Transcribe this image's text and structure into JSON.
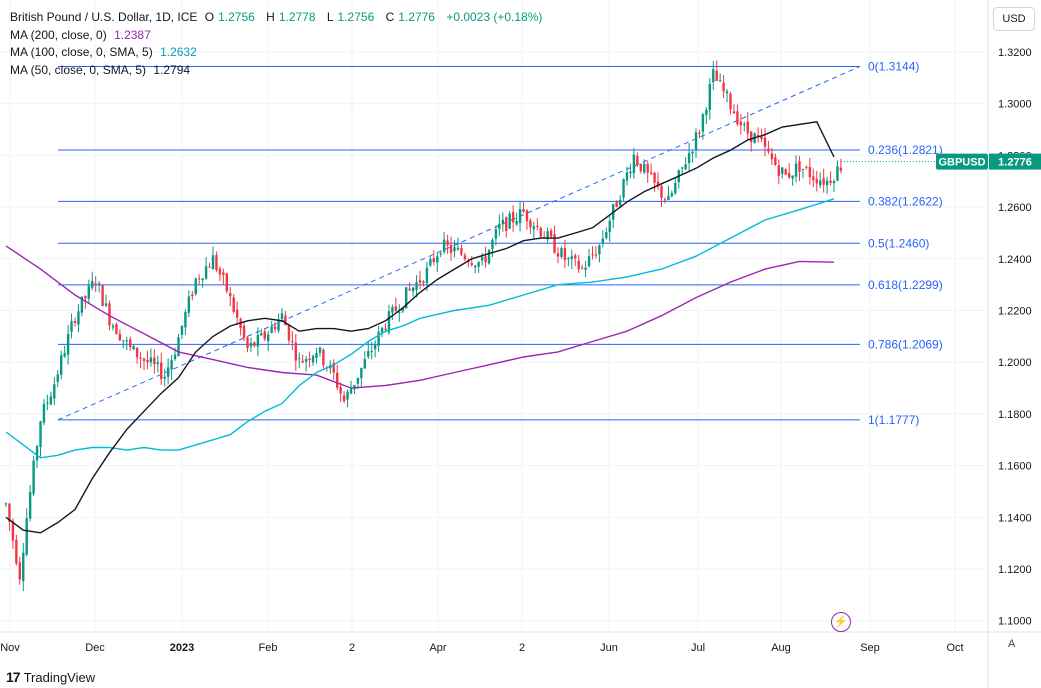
{
  "header": {
    "symbol_title": "British Pound / U.S. Dollar, 1D, ICE",
    "ohlc": {
      "open_label": "O",
      "open": "1.2756",
      "high_label": "H",
      "high": "1.2778",
      "low_label": "L",
      "low": "1.2756",
      "close_label": "C",
      "close": "1.2776",
      "change": "+0.0023 (+0.18%)"
    },
    "indicators": [
      {
        "label": "MA (200, close, 0)",
        "value": "1.2387",
        "color": "#9c27b0"
      },
      {
        "label": "MA (100, close, 0, SMA, 5)",
        "value": "1.2632",
        "color": "#00bcd4"
      },
      {
        "label": "MA (50, close, 0, SMA, 5)",
        "value": "1.2794",
        "color": "#131722"
      }
    ]
  },
  "currency_button": "USD",
  "auto_button": "A",
  "footer_brand": "TradingView",
  "colors": {
    "up": "#089981",
    "down": "#f23645",
    "fib": "#2962ff",
    "ma200": "#9c27b0",
    "ma100": "#00bcd4",
    "ma50": "#131722",
    "grid": "#f0f3fa"
  },
  "chart_data": {
    "type": "candlestick",
    "title": "British Pound / U.S. Dollar, 1D, ICE",
    "symbol": "GBPUSD",
    "last_price": "1.2776",
    "y_axis": {
      "min": 1.09,
      "max": 1.33,
      "ticks": [
        "1.1000",
        "1.1200",
        "1.1400",
        "1.1600",
        "1.1800",
        "1.2000",
        "1.2200",
        "1.2400",
        "1.2600",
        "1.2800",
        "1.3000",
        "1.3200"
      ]
    },
    "x_axis_labels": [
      "Nov",
      "Dec",
      "2023",
      "Feb",
      "2",
      "Apr",
      "2",
      "Jun",
      "Jul",
      "Aug",
      "Sep",
      "Oct"
    ],
    "fibonacci": [
      {
        "level": "0",
        "price": 1.3144,
        "label": "0(1.3144)"
      },
      {
        "level": "0.236",
        "price": 1.2821,
        "label": "0.236(1.2821)"
      },
      {
        "level": "0.382",
        "price": 1.2622,
        "label": "0.382(1.2622)"
      },
      {
        "level": "0.5",
        "price": 1.246,
        "label": "0.5(1.2460)"
      },
      {
        "level": "0.618",
        "price": 1.2299,
        "label": "0.618(1.2299)"
      },
      {
        "level": "0.786",
        "price": 1.2069,
        "label": "0.786(1.2069)"
      },
      {
        "level": "1",
        "price": 1.1777,
        "label": "1(1.1777)"
      }
    ],
    "fib_trend": {
      "from": {
        "day": 14,
        "price": 1.1777
      },
      "to": {
        "day": 200,
        "price": 1.3144
      }
    },
    "trend_path": [
      [
        0,
        1.145
      ],
      [
        4,
        1.118
      ],
      [
        6,
        1.14
      ],
      [
        10,
        1.178
      ],
      [
        14,
        1.192
      ],
      [
        20,
        1.218
      ],
      [
        26,
        1.232
      ],
      [
        30,
        1.217
      ],
      [
        36,
        1.205
      ],
      [
        41,
        1.2
      ],
      [
        46,
        1.195
      ],
      [
        49,
        1.205
      ],
      [
        55,
        1.232
      ],
      [
        60,
        1.24
      ],
      [
        64,
        1.228
      ],
      [
        70,
        1.205
      ],
      [
        75,
        1.21
      ],
      [
        80,
        1.218
      ],
      [
        85,
        1.2
      ],
      [
        90,
        1.205
      ],
      [
        95,
        1.195
      ],
      [
        98,
        1.185
      ],
      [
        102,
        1.195
      ],
      [
        106,
        1.205
      ],
      [
        110,
        1.215
      ],
      [
        116,
        1.226
      ],
      [
        122,
        1.235
      ],
      [
        126,
        1.245
      ],
      [
        132,
        1.242
      ],
      [
        138,
        1.238
      ],
      [
        143,
        1.252
      ],
      [
        150,
        1.258
      ],
      [
        157,
        1.248
      ],
      [
        162,
        1.24
      ],
      [
        167,
        1.236
      ],
      [
        172,
        1.245
      ],
      [
        177,
        1.262
      ],
      [
        182,
        1.28
      ],
      [
        187,
        1.27
      ],
      [
        192,
        1.262
      ],
      [
        197,
        1.278
      ],
      [
        201,
        1.29
      ],
      [
        205,
        1.311
      ],
      [
        209,
        1.302
      ],
      [
        214,
        1.29
      ],
      [
        218,
        1.286
      ],
      [
        222,
        1.278
      ],
      [
        226,
        1.272
      ],
      [
        230,
        1.276
      ],
      [
        234,
        1.272
      ],
      [
        238,
        1.27
      ],
      [
        242,
        1.276
      ]
    ],
    "series": [
      {
        "name": "MA (200, close, 0)",
        "color": "#9c27b0",
        "points": [
          [
            0,
            1.245
          ],
          [
            10,
            1.236
          ],
          [
            20,
            1.226
          ],
          [
            30,
            1.218
          ],
          [
            40,
            1.211
          ],
          [
            50,
            1.204
          ],
          [
            60,
            1.201
          ],
          [
            70,
            1.198
          ],
          [
            80,
            1.196
          ],
          [
            90,
            1.195
          ],
          [
            100,
            1.19
          ],
          [
            110,
            1.191
          ],
          [
            120,
            1.193
          ],
          [
            130,
            1.196
          ],
          [
            140,
            1.199
          ],
          [
            150,
            1.202
          ],
          [
            160,
            1.204
          ],
          [
            170,
            1.208
          ],
          [
            180,
            1.212
          ],
          [
            190,
            1.218
          ],
          [
            200,
            1.225
          ],
          [
            210,
            1.231
          ],
          [
            220,
            1.236
          ],
          [
            230,
            1.239
          ],
          [
            240,
            1.2387
          ]
        ]
      },
      {
        "name": "MA (100, close, 0, SMA, 5)",
        "color": "#00bcd4",
        "points": [
          [
            0,
            1.173
          ],
          [
            5,
            1.168
          ],
          [
            10,
            1.163
          ],
          [
            15,
            1.164
          ],
          [
            20,
            1.166
          ],
          [
            25,
            1.167
          ],
          [
            30,
            1.167
          ],
          [
            35,
            1.166
          ],
          [
            40,
            1.167
          ],
          [
            45,
            1.166
          ],
          [
            50,
            1.166
          ],
          [
            55,
            1.168
          ],
          [
            60,
            1.17
          ],
          [
            65,
            1.172
          ],
          [
            70,
            1.177
          ],
          [
            75,
            1.181
          ],
          [
            80,
            1.184
          ],
          [
            85,
            1.191
          ],
          [
            90,
            1.196
          ],
          [
            95,
            1.199
          ],
          [
            100,
            1.203
          ],
          [
            105,
            1.208
          ],
          [
            110,
            1.212
          ],
          [
            115,
            1.214
          ],
          [
            120,
            1.217
          ],
          [
            130,
            1.22
          ],
          [
            140,
            1.222
          ],
          [
            150,
            1.226
          ],
          [
            160,
            1.23
          ],
          [
            170,
            1.231
          ],
          [
            180,
            1.233
          ],
          [
            190,
            1.236
          ],
          [
            200,
            1.241
          ],
          [
            210,
            1.248
          ],
          [
            220,
            1.255
          ],
          [
            230,
            1.259
          ],
          [
            240,
            1.2632
          ]
        ]
      },
      {
        "name": "MA (50, close, 0, SMA, 5)",
        "color": "#131722",
        "points": [
          [
            0,
            1.14
          ],
          [
            5,
            1.135
          ],
          [
            10,
            1.134
          ],
          [
            15,
            1.138
          ],
          [
            20,
            1.143
          ],
          [
            25,
            1.155
          ],
          [
            30,
            1.165
          ],
          [
            35,
            1.174
          ],
          [
            40,
            1.181
          ],
          [
            45,
            1.188
          ],
          [
            50,
            1.194
          ],
          [
            55,
            1.204
          ],
          [
            60,
            1.21
          ],
          [
            65,
            1.214
          ],
          [
            70,
            1.216
          ],
          [
            75,
            1.217
          ],
          [
            80,
            1.216
          ],
          [
            85,
            1.212
          ],
          [
            90,
            1.213
          ],
          [
            95,
            1.213
          ],
          [
            100,
            1.212
          ],
          [
            105,
            1.213
          ],
          [
            110,
            1.216
          ],
          [
            115,
            1.221
          ],
          [
            120,
            1.227
          ],
          [
            125,
            1.232
          ],
          [
            130,
            1.236
          ],
          [
            135,
            1.24
          ],
          [
            140,
            1.242
          ],
          [
            145,
            1.244
          ],
          [
            150,
            1.247
          ],
          [
            155,
            1.248
          ],
          [
            160,
            1.248
          ],
          [
            165,
            1.25
          ],
          [
            170,
            1.252
          ],
          [
            175,
            1.257
          ],
          [
            180,
            1.262
          ],
          [
            185,
            1.266
          ],
          [
            190,
            1.269
          ],
          [
            195,
            1.272
          ],
          [
            200,
            1.275
          ],
          [
            205,
            1.279
          ],
          [
            210,
            1.282
          ],
          [
            215,
            1.286
          ],
          [
            220,
            1.288
          ],
          [
            225,
            1.291
          ],
          [
            230,
            1.292
          ],
          [
            235,
            1.293
          ],
          [
            240,
            1.2794
          ]
        ]
      }
    ]
  }
}
